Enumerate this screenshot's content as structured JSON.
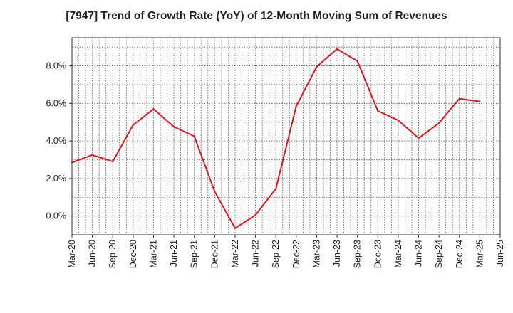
{
  "chart_data": {
    "type": "line",
    "title": "[7947]  Trend of Growth Rate (YoY) of 12-Month Moving Sum of Revenues",
    "xlabel": "",
    "ylabel": "",
    "x_tick_labels": [
      "Mar-20",
      "Jun-20",
      "Sep-20",
      "Dec-20",
      "Mar-21",
      "Jun-21",
      "Sep-21",
      "Dec-21",
      "Mar-22",
      "Jun-22",
      "Sep-22",
      "Dec-22",
      "Mar-23",
      "Jun-23",
      "Sep-23",
      "Dec-23",
      "Mar-24",
      "Jun-24",
      "Sep-24",
      "Dec-24",
      "Mar-25",
      "Jun-25"
    ],
    "y_ticks": [
      0,
      2,
      4,
      6,
      8
    ],
    "y_tick_labels": [
      "0.0%",
      "2.0%",
      "4.0%",
      "6.0%",
      "8.0%"
    ],
    "ylim": [
      -1.0,
      9.5
    ],
    "grid": true,
    "series": [
      {
        "color": "#e8141b",
        "x": [
          "Mar-20",
          "Jun-20",
          "Sep-20",
          "Dec-20",
          "Mar-21",
          "Jun-21",
          "Sep-21",
          "Dec-21",
          "Mar-22",
          "Jun-22",
          "Sep-22",
          "Dec-22",
          "Mar-23",
          "Jun-23",
          "Sep-23",
          "Dec-23",
          "Mar-24",
          "Jun-24",
          "Sep-24",
          "Dec-24",
          "Mar-25"
        ],
        "values": [
          2.85,
          3.25,
          2.9,
          4.85,
          5.7,
          4.75,
          4.25,
          1.3,
          -0.65,
          0.05,
          1.45,
          5.85,
          7.95,
          8.9,
          8.25,
          5.6,
          5.1,
          4.15,
          4.95,
          6.25,
          6.1
        ]
      }
    ]
  }
}
